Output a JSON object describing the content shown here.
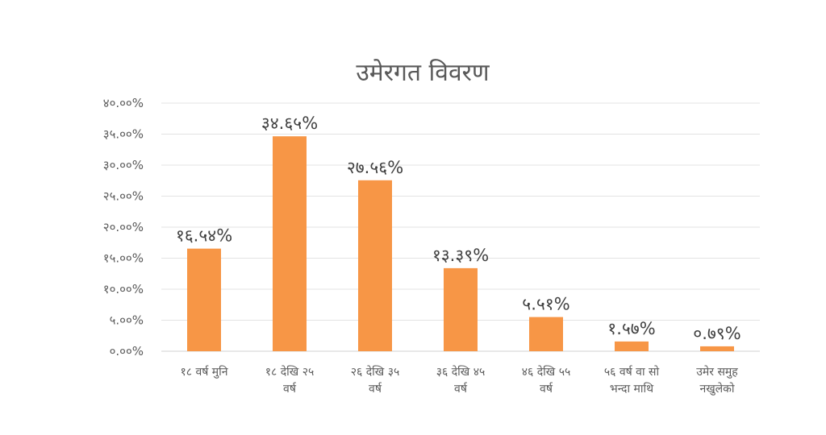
{
  "chart_data": {
    "type": "bar",
    "title": "उमेरगत विवरण",
    "xlabel": "",
    "ylabel": "",
    "ylim": [
      0,
      40
    ],
    "grid": true,
    "legend": "none",
    "bar_color": "#F79646",
    "yticks": [
      "०.००%",
      "५.००%",
      "१०.००%",
      "१५.००%",
      "२०.००%",
      "२५.००%",
      "३०.००%",
      "३५.००%",
      "४०.००%"
    ],
    "categories": [
      [
        "१८ वर्ष मुनि"
      ],
      [
        "१८ देखि २५",
        "वर्ष"
      ],
      [
        "२६ देखि ३५",
        "वर्ष"
      ],
      [
        "३६ देखि ४५",
        "वर्ष"
      ],
      [
        "४६ देखि ५५",
        "वर्ष"
      ],
      [
        "५६ वर्ष वा सो",
        "भन्दा माथि"
      ],
      [
        "उमेर समुह",
        "नखुलेको"
      ]
    ],
    "values": [
      16.54,
      34.65,
      27.56,
      13.39,
      5.51,
      1.57,
      0.79
    ],
    "data_labels": [
      "१६.५४%",
      "३४.६५%",
      "२७.५६%",
      "१३.३९%",
      "५.५१%",
      "१.५७%",
      "०.७९%"
    ]
  }
}
